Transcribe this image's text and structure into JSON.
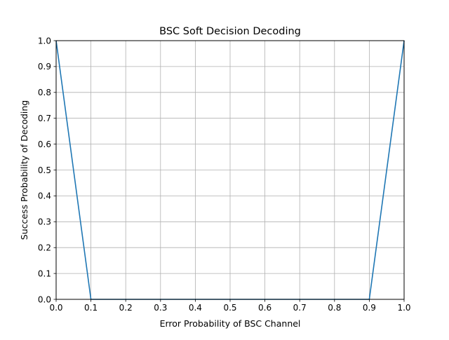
{
  "chart_data": {
    "type": "line",
    "title": "BSC Soft Decision Decoding",
    "xlabel": "Error Probability of BSC Channel",
    "ylabel": "Success Probability of Decoding",
    "xlim": [
      0.0,
      1.0
    ],
    "ylim": [
      0.0,
      1.0
    ],
    "xticks": [
      "0.0",
      "0.1",
      "0.2",
      "0.3",
      "0.4",
      "0.5",
      "0.6",
      "0.7",
      "0.8",
      "0.9",
      "1.0"
    ],
    "yticks": [
      "0.0",
      "0.1",
      "0.2",
      "0.3",
      "0.4",
      "0.5",
      "0.6",
      "0.7",
      "0.8",
      "0.9",
      "1.0"
    ],
    "grid": true,
    "series": [
      {
        "color": "#1f77b4",
        "x": [
          0.0,
          0.1,
          0.2,
          0.3,
          0.4,
          0.5,
          0.6,
          0.7,
          0.8,
          0.9,
          1.0
        ],
        "y": [
          1.0,
          0.0,
          0.0,
          0.0,
          0.0,
          0.0,
          0.0,
          0.0,
          0.0,
          0.0,
          1.0
        ]
      }
    ]
  }
}
